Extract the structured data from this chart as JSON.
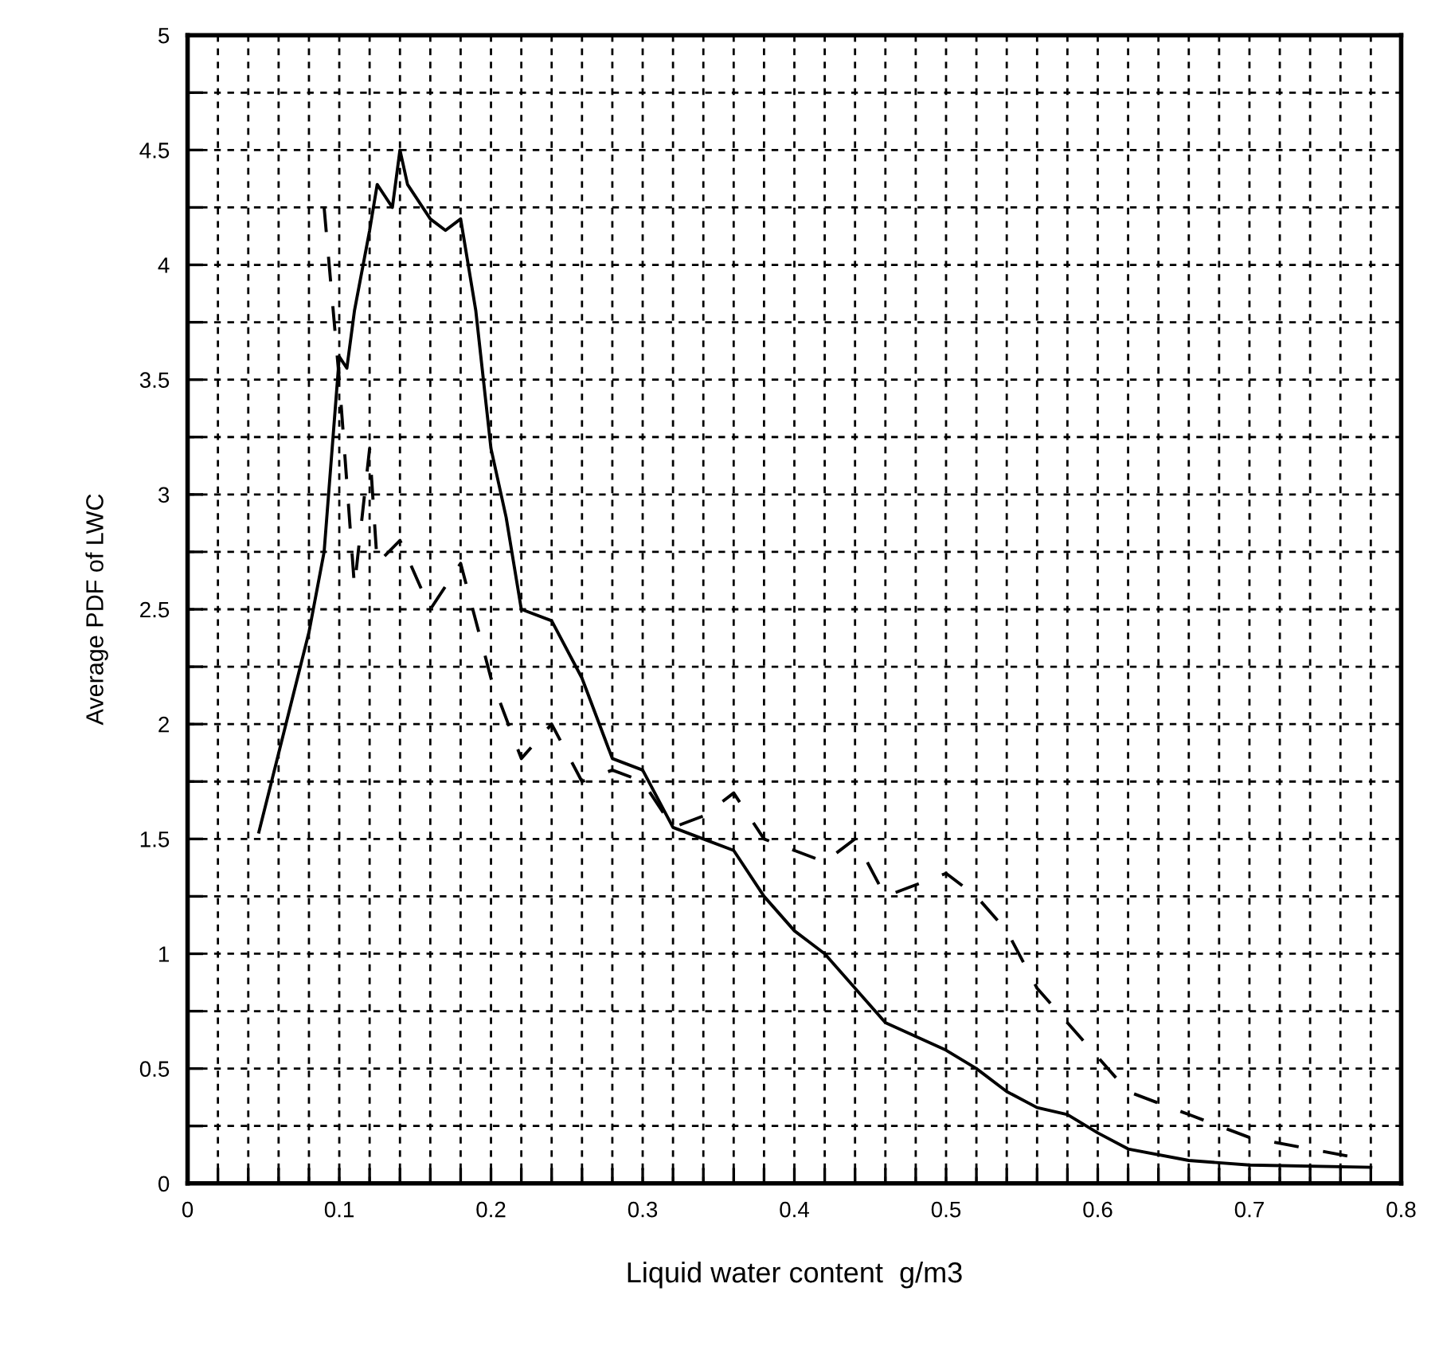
{
  "chart_data": {
    "type": "line",
    "xlabel": "Liquid water content  g/m3",
    "ylabel": "Average PDF of LWC",
    "xlim": [
      0,
      0.8
    ],
    "ylim": [
      0,
      5
    ],
    "xticks": [
      0,
      {
        "value": 0.02,
        "label": null
      },
      {
        "value": 0.04,
        "label": null
      },
      {
        "value": 0.06,
        "label": null
      },
      {
        "value": 0.08,
        "label": null
      },
      0.1,
      {
        "value": 0.12,
        "label": null
      },
      {
        "value": 0.14,
        "label": null
      },
      {
        "value": 0.16,
        "label": null
      },
      {
        "value": 0.18,
        "label": null
      },
      0.2,
      {
        "value": 0.22,
        "label": null
      },
      {
        "value": 0.24,
        "label": null
      },
      {
        "value": 0.26,
        "label": null
      },
      {
        "value": 0.28,
        "label": null
      },
      0.3,
      {
        "value": 0.32,
        "label": null
      },
      {
        "value": 0.34,
        "label": null
      },
      {
        "value": 0.36,
        "label": null
      },
      {
        "value": 0.38,
        "label": null
      },
      0.4,
      {
        "value": 0.42,
        "label": null
      },
      {
        "value": 0.44,
        "label": null
      },
      {
        "value": 0.46,
        "label": null
      },
      {
        "value": 0.48,
        "label": null
      },
      0.5,
      {
        "value": 0.52,
        "label": null
      },
      {
        "value": 0.54,
        "label": null
      },
      {
        "value": 0.56,
        "label": null
      },
      {
        "value": 0.58,
        "label": null
      },
      0.6,
      {
        "value": 0.62,
        "label": null
      },
      {
        "value": 0.64,
        "label": null
      },
      {
        "value": 0.66,
        "label": null
      },
      {
        "value": 0.68,
        "label": null
      },
      0.7,
      {
        "value": 0.72,
        "label": null
      },
      {
        "value": 0.74,
        "label": null
      },
      {
        "value": 0.76,
        "label": null
      },
      {
        "value": 0.78,
        "label": null
      },
      0.8
    ],
    "yticks": [
      0,
      {
        "value": 0.25,
        "label": null
      },
      0.5,
      {
        "value": 0.75,
        "label": null
      },
      1,
      {
        "value": 1.25,
        "label": null
      },
      1.5,
      {
        "value": 1.75,
        "label": null
      },
      2,
      {
        "value": 2.25,
        "label": null
      },
      2.5,
      {
        "value": 2.75,
        "label": null
      },
      3,
      {
        "value": 3.25,
        "label": null
      },
      3.5,
      {
        "value": 3.75,
        "label": null
      },
      4,
      {
        "value": 4.25,
        "label": null
      },
      4.5,
      {
        "value": 4.75,
        "label": null
      },
      5
    ],
    "grid": true,
    "marker": "none",
    "series": [
      {
        "color": "#000000",
        "line_style": "solid",
        "x": [
          0.047,
          0.08,
          0.09,
          0.1,
          0.105,
          0.11,
          0.12,
          0.125,
          0.13,
          0.135,
          0.14,
          0.145,
          0.16,
          0.17,
          0.18,
          0.19,
          0.2,
          0.21,
          0.22,
          0.24,
          0.26,
          0.28,
          0.3,
          0.32,
          0.34,
          0.36,
          0.38,
          0.4,
          0.42,
          0.44,
          0.46,
          0.5,
          0.52,
          0.54,
          0.56,
          0.58,
          0.6,
          0.62,
          0.66,
          0.7,
          0.78
        ],
        "values": [
          1.53,
          2.4,
          2.75,
          3.6,
          3.55,
          3.8,
          4.15,
          4.35,
          4.3,
          4.25,
          4.5,
          4.35,
          4.2,
          4.15,
          4.2,
          3.8,
          3.2,
          2.9,
          2.5,
          2.45,
          2.2,
          1.85,
          1.8,
          1.55,
          1.5,
          1.45,
          1.25,
          1.1,
          1.0,
          0.85,
          0.7,
          0.58,
          0.5,
          0.4,
          0.33,
          0.3,
          0.22,
          0.15,
          0.1,
          0.08,
          0.07
        ]
      },
      {
        "color": "#000000",
        "line_style": "dashed",
        "x": [
          0.09,
          0.1,
          0.11,
          0.12,
          0.125,
          0.14,
          0.16,
          0.18,
          0.2,
          0.22,
          0.24,
          0.26,
          0.28,
          0.3,
          0.32,
          0.34,
          0.36,
          0.38,
          0.4,
          0.42,
          0.44,
          0.46,
          0.48,
          0.5,
          0.52,
          0.54,
          0.56,
          0.58,
          0.6,
          0.62,
          0.64,
          0.66,
          0.7,
          0.74,
          0.78
        ],
        "values": [
          4.25,
          3.5,
          2.6,
          3.2,
          2.7,
          2.8,
          2.5,
          2.7,
          2.2,
          1.85,
          2.0,
          1.75,
          1.8,
          1.75,
          1.55,
          1.6,
          1.7,
          1.5,
          1.45,
          1.4,
          1.5,
          1.25,
          1.3,
          1.35,
          1.25,
          1.1,
          0.85,
          0.7,
          0.55,
          0.4,
          0.35,
          0.3,
          0.2,
          0.15,
          0.1
        ]
      }
    ]
  }
}
